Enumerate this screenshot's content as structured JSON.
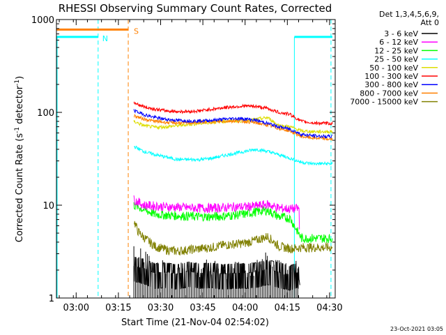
{
  "chart_data": {
    "type": "line",
    "title": "RHESSI Observing Summary Count Rates, Corrected",
    "xlabel": "Start Time (21-Nov-04 02:54:02)",
    "ylabel_main": "Corrected Count Rate (s",
    "ylabel_sup1": "-1",
    "ylabel_mid": " detector",
    "ylabel_sup2": "-1",
    "ylabel_end": ")",
    "yscale": "log",
    "ylim": [
      1,
      1000
    ],
    "xlim_min": [
      -1,
      98
    ],
    "y_ticks": [
      {
        "value": 1,
        "label": "1"
      },
      {
        "value": 10,
        "label": "10"
      },
      {
        "value": 100,
        "label": "100"
      },
      {
        "value": 1000,
        "label": "1000"
      }
    ],
    "x_ticks": [
      {
        "value": 6,
        "label": "03:00"
      },
      {
        "value": 21,
        "label": "03:15"
      },
      {
        "value": 36,
        "label": "03:30"
      },
      {
        "value": 51,
        "label": "03:45"
      },
      {
        "value": 66,
        "label": "04:00"
      },
      {
        "value": 81,
        "label": "04:15"
      },
      {
        "value": 96,
        "label": "04:30"
      }
    ],
    "legend_header": [
      "Det 1,3,4,5,6,9,",
      "Att 0"
    ],
    "footer_date": "23-Oct-2021 03:05",
    "flags": [
      {
        "label": "N",
        "kind": "night",
        "color": "#00ffff",
        "level": 650,
        "spans": [
          [
            -1,
            13.8
          ],
          [
            83.5,
            97
          ]
        ],
        "dashed_x": [
          13.8,
          96.5
        ],
        "solid_x": [
          83.5
        ]
      },
      {
        "label": "S",
        "kind": "saa",
        "color": "#ff8000",
        "level": 780,
        "spans": [
          [
            -1,
            24.5
          ]
        ],
        "dashed_x": [
          24.5
        ]
      }
    ],
    "series": [
      {
        "name": "3 - 6 keV",
        "color": "#000000",
        "x": [
          26.5,
          30,
          34,
          38,
          42,
          46,
          50,
          54,
          58,
          62,
          66,
          70,
          74,
          78,
          82,
          84.8,
          85.5
        ],
        "values": [
          2.8,
          2.4,
          1.8,
          1.9,
          1.7,
          2.0,
          1.8,
          1.9,
          1.7,
          1.8,
          1.8,
          1.9,
          2.3,
          1.9,
          1.6,
          1.9,
          0.8
        ]
      },
      {
        "name": "6 - 12 keV",
        "color": "#ff00ff",
        "x": [
          26.5,
          30,
          34,
          38,
          42,
          46,
          50,
          54,
          58,
          62,
          66,
          70,
          74,
          78,
          82,
          85.2,
          85.4
        ],
        "values": [
          11.5,
          10.0,
          9.8,
          9.6,
          9.5,
          9.4,
          9.3,
          9.3,
          9.4,
          9.6,
          9.6,
          9.8,
          10.2,
          9.3,
          9.1,
          9.2,
          3.0
        ]
      },
      {
        "name": "12 - 25 keV",
        "color": "#00ff00",
        "x": [
          26.5,
          30,
          34,
          38,
          42,
          46,
          50,
          54,
          58,
          62,
          66,
          70,
          74,
          78,
          82,
          86,
          90,
          94,
          97
        ],
        "values": [
          10.0,
          9.0,
          8.0,
          7.8,
          7.7,
          7.6,
          7.5,
          7.5,
          7.6,
          7.8,
          8.0,
          8.5,
          8.8,
          7.5,
          7.2,
          4.4,
          4.4,
          4.4,
          4.4
        ]
      },
      {
        "name": "25 - 50 keV",
        "color": "#00ffff",
        "x": [
          26.5,
          30,
          34,
          38,
          42,
          46,
          50,
          54,
          58,
          62,
          66,
          70,
          74,
          78,
          82,
          86,
          90,
          94,
          97
        ],
        "values": [
          43,
          38,
          35,
          33,
          31,
          31,
          31,
          32,
          34,
          36,
          38,
          40,
          38,
          35,
          32,
          29,
          28,
          28,
          28
        ]
      },
      {
        "name": "50 - 100 keV",
        "color": "#dddd00",
        "x": [
          26.5,
          30,
          34,
          38,
          42,
          46,
          50,
          54,
          58,
          62,
          66,
          70,
          74,
          78,
          82,
          86,
          90,
          94,
          97
        ],
        "values": [
          80,
          72,
          69,
          70,
          72,
          74,
          76,
          78,
          80,
          81,
          81,
          84,
          88,
          72,
          70,
          63,
          62,
          62,
          62
        ]
      },
      {
        "name": "100 - 300 keV",
        "color": "#ff0000",
        "x": [
          26.5,
          30,
          34,
          38,
          42,
          46,
          50,
          54,
          58,
          62,
          66,
          70,
          74,
          78,
          82,
          86,
          90,
          94,
          97
        ],
        "values": [
          128,
          115,
          108,
          104,
          102,
          102,
          104,
          108,
          112,
          115,
          117,
          116,
          110,
          100,
          95,
          80,
          77,
          76,
          76
        ]
      },
      {
        "name": "300 - 800 keV",
        "color": "#0000ff",
        "x": [
          26.5,
          30,
          34,
          38,
          42,
          46,
          50,
          54,
          58,
          62,
          66,
          70,
          74,
          78,
          82,
          86,
          90,
          94,
          97
        ],
        "values": [
          105,
          95,
          88,
          84,
          82,
          81,
          81,
          82,
          84,
          86,
          85,
          82,
          76,
          70,
          66,
          58,
          56,
          55,
          55
        ]
      },
      {
        "name": "800 - 7000 keV",
        "color": "#ff8000",
        "x": [
          26.5,
          30,
          34,
          38,
          42,
          46,
          50,
          54,
          58,
          62,
          66,
          70,
          74,
          78,
          82,
          86,
          90,
          94,
          97
        ],
        "values": [
          92,
          85,
          80,
          78,
          77,
          77,
          78,
          79,
          80,
          81,
          80,
          77,
          73,
          67,
          63,
          55,
          53,
          52,
          51
        ]
      },
      {
        "name": "7000 - 15000 keV",
        "color": "#808000",
        "x": [
          26.5,
          28,
          30,
          34,
          38,
          42,
          46,
          50,
          54,
          58,
          62,
          66,
          70,
          74,
          78,
          82,
          86,
          90,
          94,
          97
        ],
        "values": [
          6.8,
          5.2,
          4.5,
          3.6,
          3.3,
          3.2,
          3.3,
          3.4,
          3.5,
          3.7,
          3.8,
          3.9,
          4.2,
          4.6,
          3.6,
          3.4,
          3.5,
          3.5,
          3.5,
          3.5
        ]
      }
    ]
  }
}
